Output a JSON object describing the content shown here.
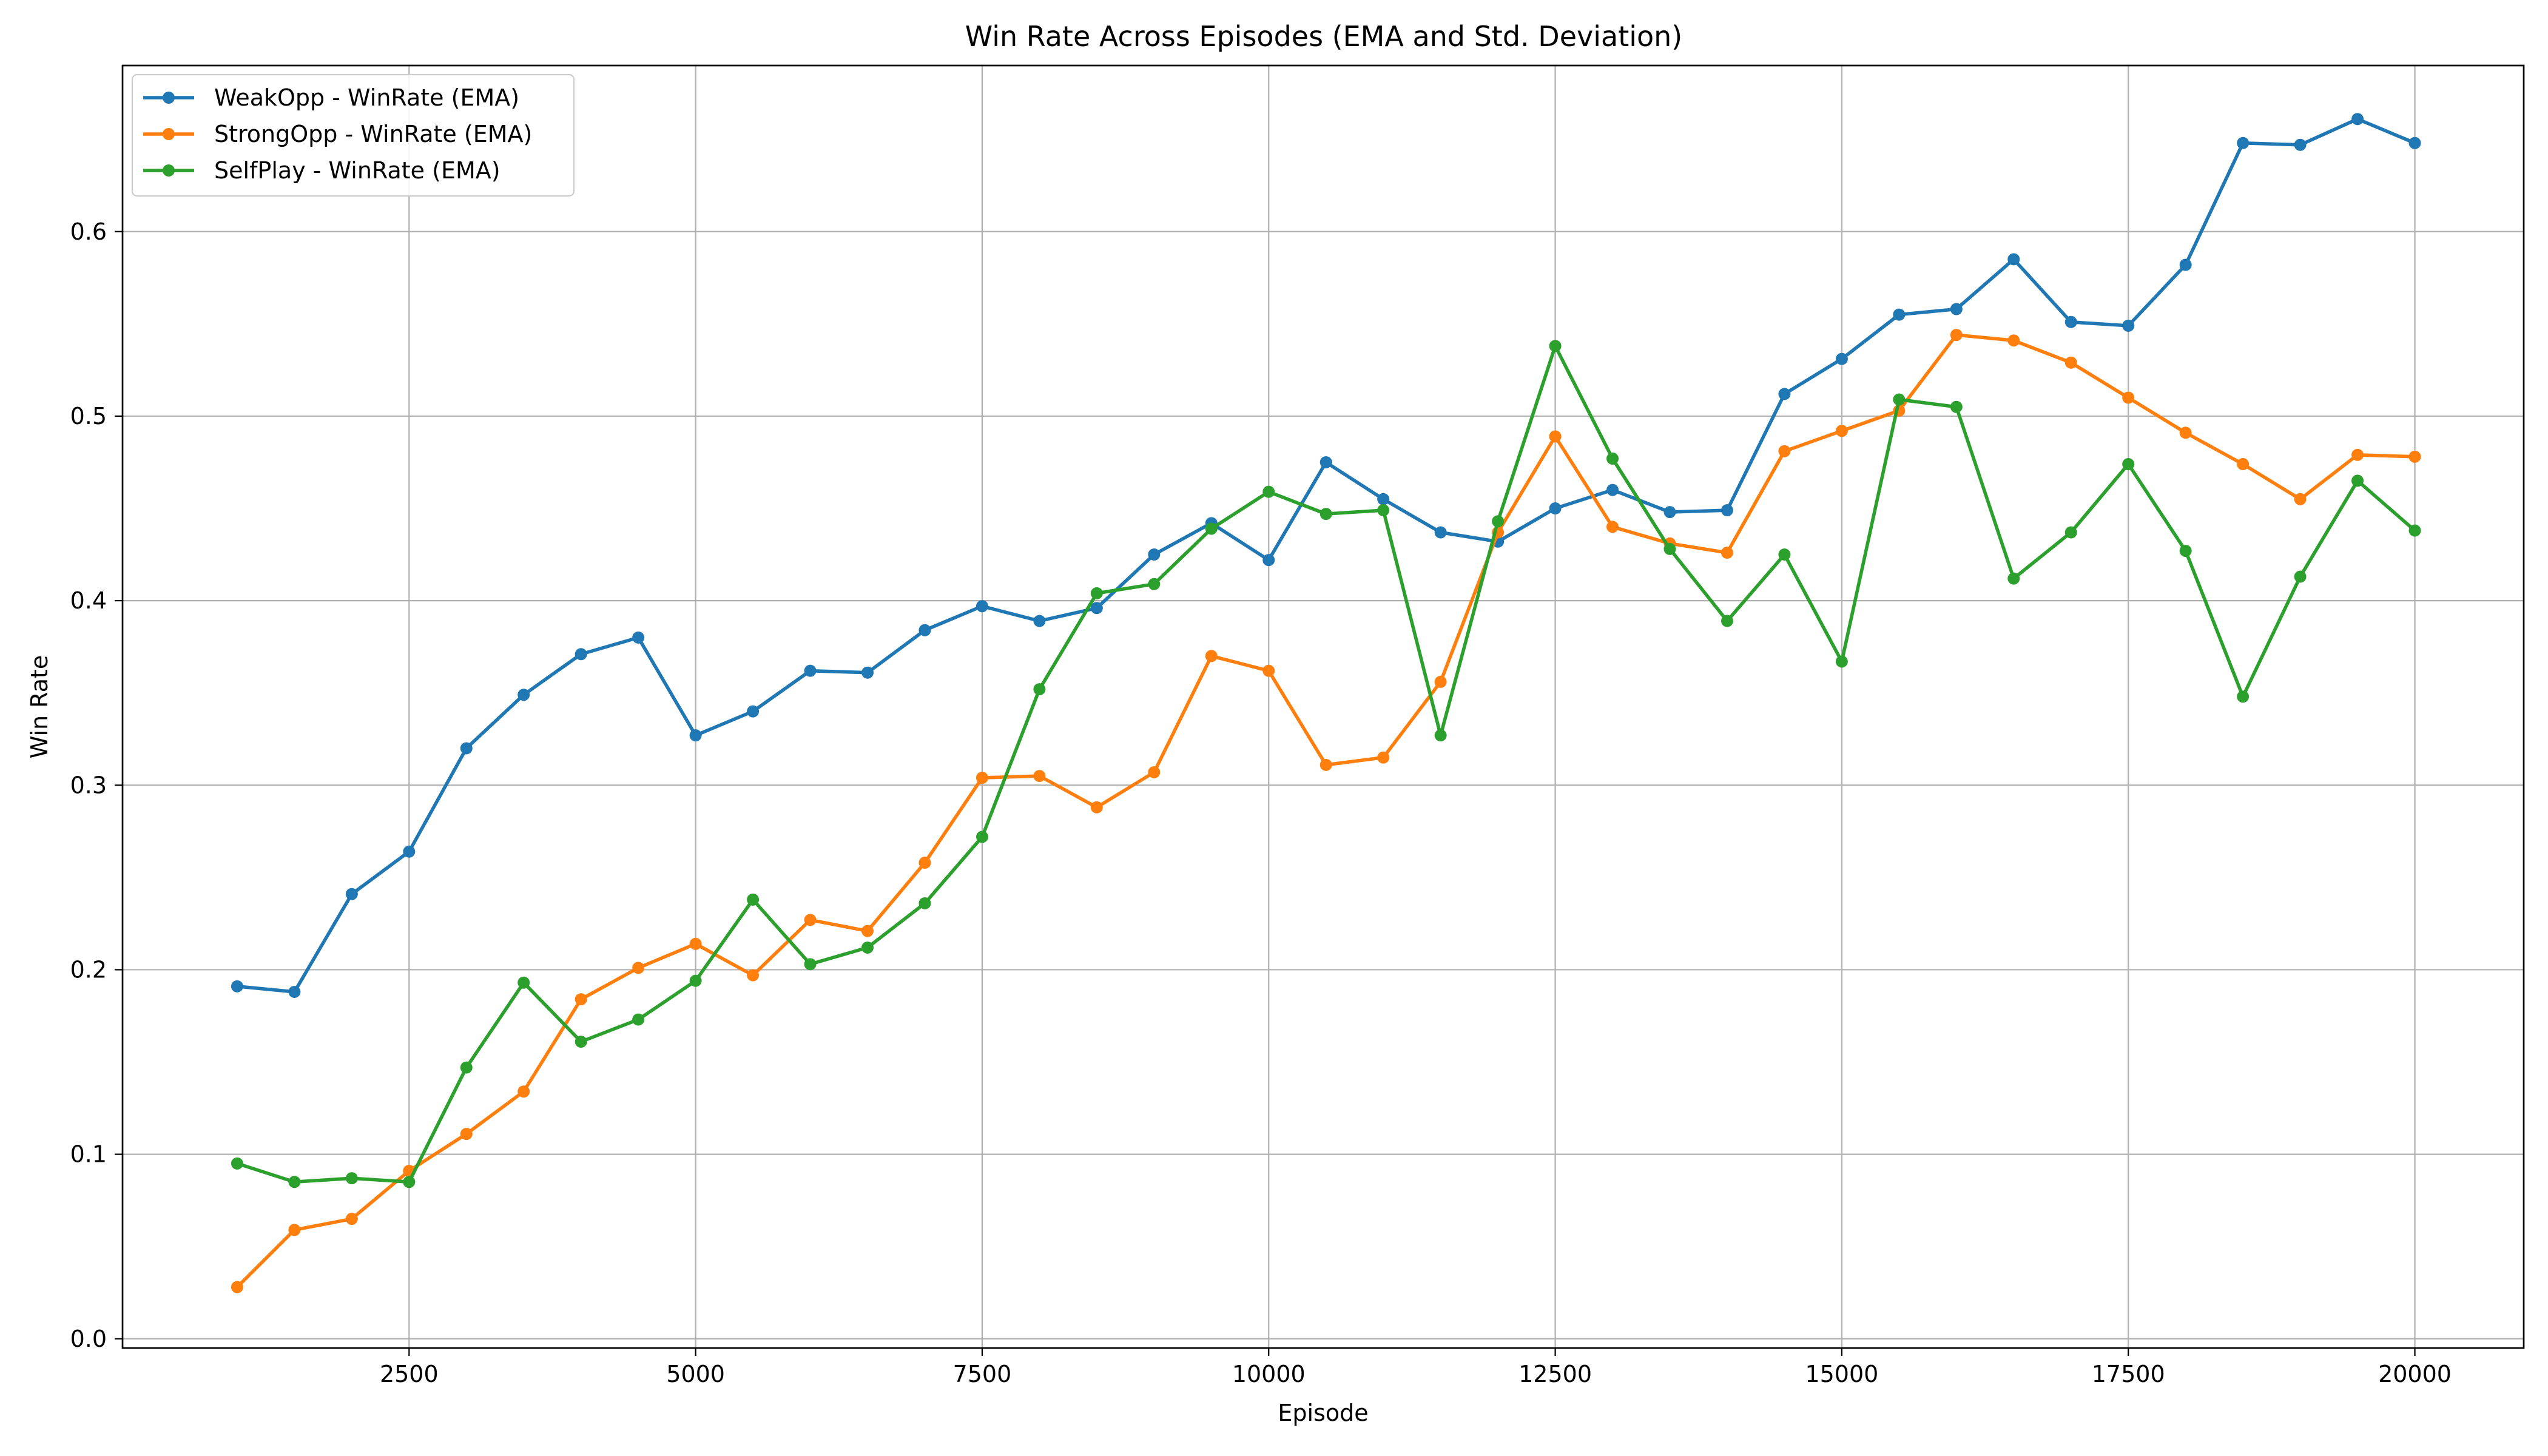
{
  "chart_data": {
    "type": "line",
    "title": "Win Rate Across Episodes (EMA and Std. Deviation)",
    "xlabel": "Episode",
    "ylabel": "Win Rate",
    "xlim": [
      0,
      20950
    ],
    "ylim": [
      -0.005,
      0.69
    ],
    "xticks": [
      2500,
      5000,
      7500,
      10000,
      12500,
      15000,
      17500,
      20000
    ],
    "xtick_labels": [
      "2500",
      "5000",
      "7500",
      "10000",
      "12500",
      "15000",
      "17500",
      "20000"
    ],
    "yticks": [
      0.0,
      0.1,
      0.2,
      0.3,
      0.4,
      0.5,
      0.6
    ],
    "ytick_labels": [
      "0.0",
      "0.1",
      "0.2",
      "0.3",
      "0.4",
      "0.5",
      "0.6"
    ],
    "grid": true,
    "legend_position": "top-left",
    "x": [
      1000,
      1500,
      2000,
      2500,
      3000,
      3500,
      4000,
      4500,
      5000,
      5500,
      6000,
      6500,
      7000,
      7500,
      8000,
      8500,
      9000,
      9500,
      10000,
      10500,
      11000,
      11500,
      12000,
      12500,
      13000,
      13500,
      14000,
      14500,
      15000,
      15500,
      16000,
      16500,
      17000,
      17500,
      18000,
      18500,
      19000,
      19500,
      20000
    ],
    "series": [
      {
        "name": "WeakOpp - WinRate (EMA)",
        "color": "#1f77b4",
        "values": [
          0.191,
          0.188,
          0.241,
          0.264,
          0.32,
          0.349,
          0.371,
          0.38,
          0.327,
          0.34,
          0.362,
          0.361,
          0.384,
          0.397,
          0.389,
          0.396,
          0.425,
          0.442,
          0.422,
          0.475,
          0.455,
          0.437,
          0.432,
          0.45,
          0.46,
          0.448,
          0.449,
          0.512,
          0.531,
          0.555,
          0.558,
          0.585,
          0.551,
          0.549,
          0.582,
          0.648,
          0.647,
          0.661,
          0.648
        ]
      },
      {
        "name": "StrongOpp - WinRate (EMA)",
        "color": "#ff7f0e",
        "values": [
          0.028,
          0.059,
          0.065,
          0.091,
          0.111,
          0.134,
          0.184,
          0.201,
          0.214,
          0.197,
          0.227,
          0.221,
          0.258,
          0.304,
          0.305,
          0.288,
          0.307,
          0.37,
          0.362,
          0.311,
          0.315,
          0.356,
          0.437,
          0.489,
          0.44,
          0.431,
          0.426,
          0.481,
          0.492,
          0.503,
          0.544,
          0.541,
          0.529,
          0.51,
          0.491,
          0.474,
          0.455,
          0.479,
          0.478
        ]
      },
      {
        "name": "SelfPlay - WinRate (EMA)",
        "color": "#2ca02c",
        "values": [
          0.095,
          0.085,
          0.087,
          0.085,
          0.147,
          0.193,
          0.161,
          0.173,
          0.194,
          0.238,
          0.203,
          0.212,
          0.236,
          0.272,
          0.352,
          0.404,
          0.409,
          0.439,
          0.459,
          0.447,
          0.449,
          0.327,
          0.443,
          0.538,
          0.477,
          0.428,
          0.389,
          0.425,
          0.367,
          0.509,
          0.505,
          0.412,
          0.437,
          0.474,
          0.427,
          0.348,
          0.413,
          0.465,
          0.438
        ]
      }
    ]
  }
}
